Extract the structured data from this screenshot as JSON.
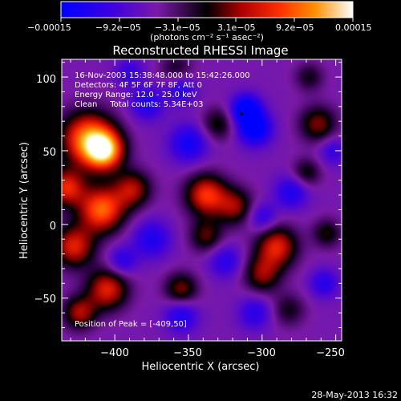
{
  "chart_data": {
    "type": "heatmap",
    "title": "Reconstructed RHESSI Image",
    "xlabel": "Heliocentric X (arcsec)",
    "ylabel": "Heliocentric Y (arcsec)",
    "xlim": [
      -436,
      -246
    ],
    "ylim": [
      -79,
      112
    ],
    "x_ticks": [
      -400,
      -350,
      -300,
      -250
    ],
    "x_tick_labels": [
      "−400",
      "−350",
      "−300",
      "−250"
    ],
    "y_ticks": [
      -50,
      0,
      50,
      100
    ],
    "y_tick_labels": [
      "−50",
      "0",
      "50",
      "100"
    ],
    "colorbar": {
      "ticks": [
        -0.00015,
        -9.2e-05,
        -3.1e-05,
        3.1e-05,
        9.2e-05,
        0.00015
      ],
      "tick_labels": [
        "−0.00015",
        "−9.2e−05",
        "−3.1e−05",
        "3.1e−05",
        "9.2e−05",
        "0.00015"
      ],
      "units": "(photons cm⁻² s⁻¹ asec⁻²)",
      "range": [
        -0.00015,
        0.00015
      ]
    },
    "annotations": [
      "16-Nov-2003 15:38:48.000 to 15:42:26.000",
      "Detectors: 4F 5F 6F 7F 8F, Att 0",
      "Energy Range: 12.0 - 25.0 keV",
      "Clean     Total counts: 5.34E+03",
      "Position of Peak = [-409,50]"
    ],
    "peak_position": [
      -409,
      50
    ],
    "features": [
      {
        "x": -418,
        "y": 58,
        "sigma": 13,
        "value": 0.00015
      },
      {
        "x": -407,
        "y": 50,
        "sigma": 9,
        "value": 0.00015
      },
      {
        "x": -433,
        "y": 25,
        "sigma": 9,
        "value": 0.00011
      },
      {
        "x": -409,
        "y": 10,
        "sigma": 11,
        "value": 0.00014
      },
      {
        "x": -428,
        "y": -15,
        "sigma": 10,
        "value": 0.00011
      },
      {
        "x": -388,
        "y": 24,
        "sigma": 9,
        "value": 9e-05
      },
      {
        "x": -405,
        "y": -44,
        "sigma": 10,
        "value": 0.00011
      },
      {
        "x": -424,
        "y": -60,
        "sigma": 8,
        "value": 9e-05
      },
      {
        "x": -338,
        "y": 20,
        "sigma": 10,
        "value": 0.00012
      },
      {
        "x": -318,
        "y": 12,
        "sigma": 9,
        "value": 8e-05
      },
      {
        "x": -290,
        "y": -15,
        "sigma": 10,
        "value": 0.00011
      },
      {
        "x": -300,
        "y": -34,
        "sigma": 9,
        "value": 8e-05
      },
      {
        "x": -338,
        "y": -8,
        "sigma": 8,
        "value": 7e-05
      },
      {
        "x": -355,
        "y": -44,
        "sigma": 8,
        "value": 8e-05
      },
      {
        "x": -262,
        "y": 68,
        "sigma": 9,
        "value": 8e-05
      },
      {
        "x": -270,
        "y": 35,
        "sigma": 7,
        "value": 6e-05
      },
      {
        "x": -256,
        "y": -6,
        "sigma": 7,
        "value": 6e-05
      },
      {
        "x": -330,
        "y": 68,
        "sigma": 8,
        "value": 6e-05
      },
      {
        "x": -282,
        "y": -58,
        "sigma": 8,
        "value": 5e-05
      },
      {
        "x": -358,
        "y": 105,
        "sigma": 8,
        "value": 5e-05
      },
      {
        "x": -268,
        "y": 100,
        "sigma": 7,
        "value": 5e-05
      },
      {
        "x": -305,
        "y": 65,
        "sigma": 8,
        "value": -0.00011
      },
      {
        "x": -311,
        "y": 78,
        "sigma": 7,
        "value": -0.00012
      },
      {
        "x": -378,
        "y": 82,
        "sigma": 8,
        "value": -7e-05
      },
      {
        "x": -355,
        "y": 92,
        "sigma": 7,
        "value": -7e-05
      },
      {
        "x": -350,
        "y": 55,
        "sigma": 9,
        "value": -8e-05
      },
      {
        "x": -280,
        "y": 22,
        "sigma": 8,
        "value": -7e-05
      },
      {
        "x": -300,
        "y": 5,
        "sigma": 7,
        "value": -6e-05
      },
      {
        "x": -375,
        "y": -10,
        "sigma": 9,
        "value": -7e-05
      },
      {
        "x": -325,
        "y": -25,
        "sigma": 8,
        "value": -6e-05
      },
      {
        "x": -355,
        "y": -62,
        "sigma": 8,
        "value": -7e-05
      },
      {
        "x": -305,
        "y": -60,
        "sigma": 8,
        "value": -6e-05
      },
      {
        "x": -258,
        "y": -40,
        "sigma": 7,
        "value": -6e-05
      },
      {
        "x": -395,
        "y": -25,
        "sigma": 7,
        "value": -6e-05
      },
      {
        "x": -390,
        "y": 103,
        "sigma": 7,
        "value": -5e-05
      },
      {
        "x": -252,
        "y": 50,
        "sigma": 7,
        "value": -5e-05
      }
    ]
  },
  "footer": {
    "timestamp": "28-May-2013 16:32"
  }
}
